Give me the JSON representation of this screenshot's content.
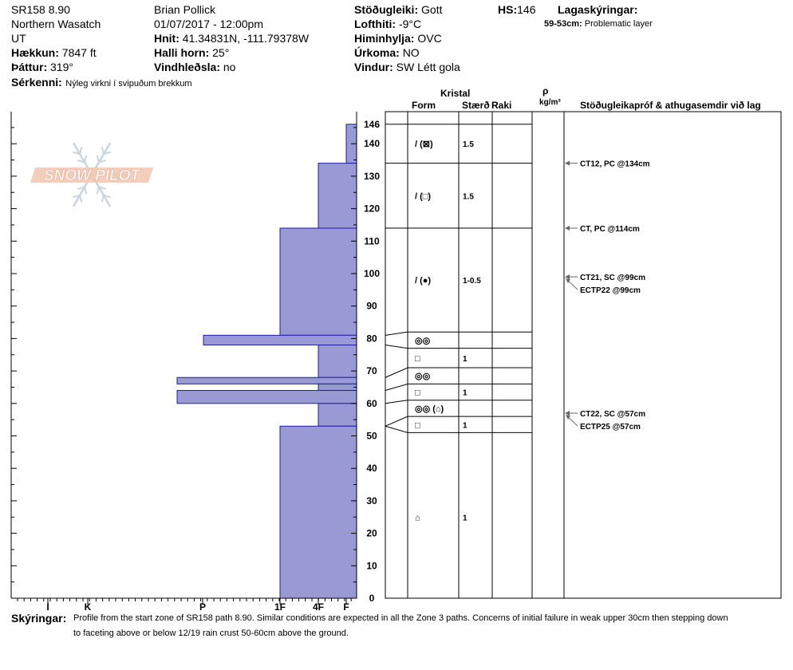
{
  "header": {
    "id": "SR158 8.90",
    "region": "Northern Wasatch",
    "state": "UT",
    "elevation_label": "Hækkun:",
    "elevation_value": "7847 ft",
    "aspect_label": "Þáttur:",
    "aspect_value": "319°",
    "special_label": "Sérkenni:",
    "special_value": "Nýleg virkni í svipuðum brekkum",
    "observer": "Brian Pollick",
    "datetime": "01/07/2017 - 12:00pm",
    "coords_label": "Hnit:",
    "coords_value": "41.34831N, -111.79378W",
    "slope_label": "Halli horn:",
    "slope_value": "25°",
    "wind_loading_label": "Vindhleðsla:",
    "wind_loading_value": "no",
    "stability_label": "Stöðugleiki:",
    "stability_value": "Gott",
    "air_temp_label": "Lofthiti:",
    "air_temp_value": "-9°C",
    "sky_label": "Himinhylja:",
    "sky_value": "OVC",
    "precip_label": "Úrkoma:",
    "precip_value": "NO",
    "wind_label": "Vindur:",
    "wind_value": "SW Létt gola",
    "hs_label": "HS:",
    "hs_value": "146",
    "layers_label": "Lagaskýringar:",
    "layer_note_range": "59-53cm:",
    "layer_note_text": "Problematic layer"
  },
  "logo": {
    "text": "SNOW PILOT"
  },
  "columns": {
    "crystal": "Kristal",
    "form": "Form",
    "size": "Stærð",
    "moisture": "Raki",
    "density_symbol": "ρ",
    "density_unit": "kg/m³",
    "tests": "Stöðugleikapróf & athugasemdir við lag"
  },
  "comments": {
    "label": "Skýringar:",
    "line1": "Profile from the start zone of SR158 path 8.90.  Similar conditions are expected in all the Zone 3 paths.  Concerns of initial failure in weak upper 30cm then stepping down",
    "line2": "to faceting above or below 12/19 rain crust 50-60cm above the ground."
  },
  "chart_data": {
    "type": "snow-profile",
    "y_axis": {
      "min": 0,
      "max": 146,
      "ticks": [
        0,
        10,
        20,
        30,
        40,
        50,
        60,
        70,
        80,
        90,
        100,
        110,
        120,
        130,
        140,
        146
      ],
      "unit": "cm"
    },
    "hardness_scale": [
      "I",
      "K",
      "P",
      "1F",
      "4F",
      "F"
    ],
    "hardness_profile": [
      {
        "top": 146,
        "bottom": 134,
        "hardness": "F"
      },
      {
        "top": 134,
        "bottom": 114,
        "hardness": "4F"
      },
      {
        "top": 114,
        "bottom": 81,
        "hardness": "1F"
      },
      {
        "top": 81,
        "bottom": 78,
        "hardness": "P+"
      },
      {
        "top": 78,
        "bottom": 68,
        "hardness": "4F"
      },
      {
        "top": 68,
        "bottom": 66,
        "hardness": "P-"
      },
      {
        "top": 66,
        "bottom": 64,
        "hardness": "4F"
      },
      {
        "top": 64,
        "bottom": 60,
        "hardness": "P-"
      },
      {
        "top": 60,
        "bottom": 53,
        "hardness": "4F"
      },
      {
        "top": 53,
        "bottom": 0,
        "hardness": "1F"
      }
    ],
    "layer_boundaries": [
      146,
      134,
      114,
      82,
      77,
      71,
      66,
      61,
      56,
      51
    ],
    "crystal_layers": [
      {
        "y": 140,
        "form": "/ (⊠)",
        "size": "1.5"
      },
      {
        "y": 124,
        "form": "/ (□)",
        "size": "1.5"
      },
      {
        "y": 98,
        "form": "/ (●)",
        "size": "1-0.5"
      },
      {
        "y": 79.5,
        "form": "◎◎",
        "size": ""
      },
      {
        "y": 74,
        "form": "□",
        "size": "1"
      },
      {
        "y": 68.5,
        "form": "◎◎",
        "size": ""
      },
      {
        "y": 63.5,
        "form": "□",
        "size": "1"
      },
      {
        "y": 58.5,
        "form": "◎◎ (⌂)",
        "size": ""
      },
      {
        "y": 53.5,
        "form": "□",
        "size": "1"
      },
      {
        "y": 25,
        "form": "⌂",
        "size": "1"
      }
    ],
    "stability_tests": [
      {
        "y": 134,
        "text": "CT12, PC @134cm"
      },
      {
        "y": 114,
        "text": "CT, PC @114cm"
      },
      {
        "y": 99,
        "text": "CT21, SC @99cm"
      },
      {
        "y": 99,
        "text": "ECTP22 @99cm"
      },
      {
        "y": 57,
        "text": "CT22, SC @57cm"
      },
      {
        "y": 57,
        "text": "ECTP25 @57cm"
      }
    ]
  },
  "colors": {
    "fill": "#9999d6",
    "stroke": "#1f1fa0",
    "grid": "#000000",
    "arrow": "#666666"
  }
}
